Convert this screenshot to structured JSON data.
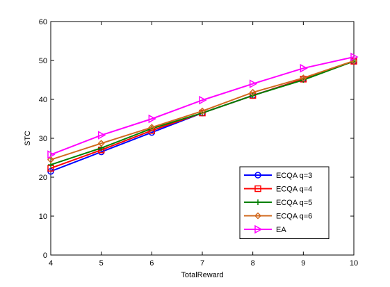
{
  "chart_data": {
    "type": "line",
    "title": "",
    "xlabel": "TotalReward",
    "ylabel": "STC",
    "xlim": [
      4,
      10
    ],
    "ylim": [
      0,
      60
    ],
    "x_ticks": [
      "4",
      "5",
      "6",
      "7",
      "8",
      "9",
      "10"
    ],
    "y_ticks": [
      "0",
      "10",
      "20",
      "30",
      "40",
      "50",
      "60"
    ],
    "x": [
      4,
      5,
      6,
      7,
      8,
      9,
      10
    ],
    "grid": false,
    "legend_position": "bottom-right",
    "series": [
      {
        "name": "ECQA q=3",
        "color": "#0000ff",
        "marker": "circle",
        "values": [
          21.5,
          26.5,
          31.5,
          36.5,
          41.0,
          45.2,
          49.8
        ]
      },
      {
        "name": "ECQA q=4",
        "color": "#ff0000",
        "marker": "square",
        "values": [
          22.3,
          27.0,
          32.0,
          36.5,
          41.0,
          45.2,
          49.8
        ]
      },
      {
        "name": "ECQA q=5",
        "color": "#008000",
        "marker": "plus",
        "values": [
          23.2,
          27.5,
          32.5,
          36.5,
          41.0,
          45.0,
          49.8
        ]
      },
      {
        "name": "ECQA q=6",
        "color": "#d2691e",
        "marker": "diamond",
        "values": [
          24.5,
          28.7,
          32.8,
          37.0,
          41.8,
          45.5,
          49.9
        ]
      },
      {
        "name": "EA",
        "color": "#ff00ff",
        "marker": "triangle-right",
        "values": [
          25.8,
          30.8,
          35.0,
          39.8,
          44.0,
          48.0,
          50.9
        ]
      }
    ]
  }
}
